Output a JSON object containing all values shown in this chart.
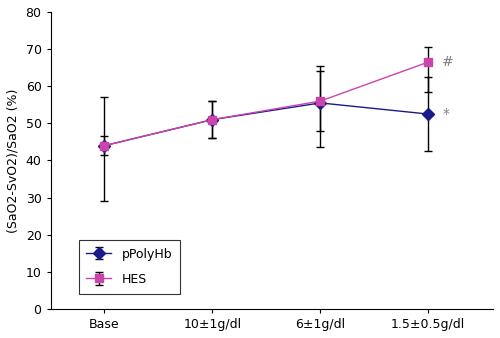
{
  "x_labels": [
    "Base",
    "10±1g/dl",
    "6±1g/dl",
    "1.5±0.5g/dl"
  ],
  "x_positions": [
    0,
    1,
    2,
    3
  ],
  "pPolyhb_means": [
    44.0,
    51.0,
    55.5,
    52.5
  ],
  "pPolyhb_yerr_upper": [
    13.0,
    5.0,
    10.0,
    10.0
  ],
  "pPolyhb_yerr_lower": [
    15.0,
    5.0,
    12.0,
    10.0
  ],
  "hes_means": [
    44.0,
    51.0,
    56.0,
    66.5
  ],
  "hes_yerr_upper": [
    2.5,
    5.0,
    8.0,
    4.0
  ],
  "hes_yerr_lower": [
    2.5,
    5.0,
    8.0,
    8.0
  ],
  "pPolyhb_color": "#1a1a8c",
  "hes_color": "#cc44aa",
  "ylabel": "(SaO2-SvO2)/SaO2 (%)",
  "ylim": [
    0,
    80
  ],
  "yticks": [
    0,
    10,
    20,
    30,
    40,
    50,
    60,
    70,
    80
  ],
  "legend_labels": [
    "pPolyHb",
    "HES"
  ],
  "annotation_star": "*",
  "annotation_hash": "#",
  "background_color": "#ffffff",
  "font_size": 9,
  "marker_ppolyhb": "D",
  "marker_hes": "s"
}
